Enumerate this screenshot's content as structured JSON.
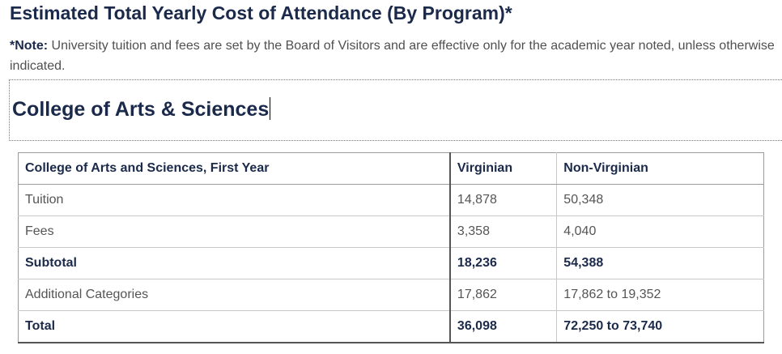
{
  "page": {
    "title": "Estimated Total Yearly Cost of Attendance (By Program)*",
    "note_label": "*Note:",
    "note_text": " University tuition and fees are set by the Board of Visitors and are effective only for the academic year noted, unless otherwise indicated."
  },
  "section": {
    "heading": "College of Arts & Sciences"
  },
  "table": {
    "headers": {
      "label": "College of Arts and Sciences, First Year",
      "virginian": "Virginian",
      "non_virginian": "Non-Virginian"
    },
    "rows": [
      {
        "label": "Tuition",
        "virginian": "14,878",
        "non_virginian": "50,348"
      },
      {
        "label": "Fees",
        "virginian": "3,358",
        "non_virginian": "4,040"
      },
      {
        "label": "Subtotal",
        "virginian": "18,236",
        "non_virginian": "54,388"
      },
      {
        "label": "Additional Categories",
        "virginian": "17,862",
        "non_virginian": "17,862 to 19,352"
      },
      {
        "label": "Total",
        "virginian": "36,098",
        "non_virginian": "72,250 to 73,740"
      }
    ]
  }
}
